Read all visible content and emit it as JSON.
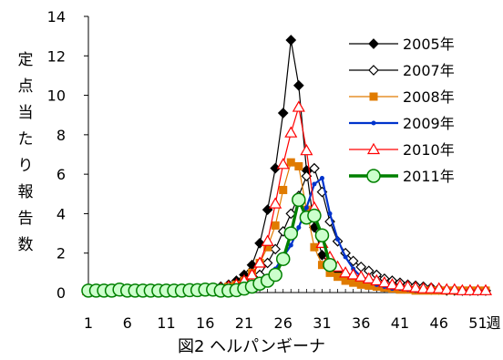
{
  "chart_data": {
    "type": "line",
    "title": "",
    "caption": "図2 ヘルパンギーナ",
    "ylabel": "定点当たり報告数",
    "xlabel": "週",
    "ylim": [
      0,
      14
    ],
    "yticks": [
      0,
      2,
      4,
      6,
      8,
      10,
      12,
      14
    ],
    "xlim": [
      1,
      52
    ],
    "xtick_labels": [
      {
        "week": 1,
        "label": "1"
      },
      {
        "week": 6,
        "label": "6"
      },
      {
        "week": 11,
        "label": "11"
      },
      {
        "week": 16,
        "label": "16"
      },
      {
        "week": 21,
        "label": "21"
      },
      {
        "week": 26,
        "label": "26"
      },
      {
        "week": 31,
        "label": "31"
      },
      {
        "week": 36,
        "label": "36"
      },
      {
        "week": 41,
        "label": "41"
      },
      {
        "week": 46,
        "label": "46"
      },
      {
        "week": 51,
        "label": "51"
      },
      {
        "week": 53,
        "label": "週"
      }
    ],
    "grid": false,
    "legend_position": "right",
    "series": [
      {
        "name": "2005年",
        "color": "#000000",
        "marker": "diamond-filled",
        "x": [
          1,
          2,
          3,
          4,
          5,
          6,
          7,
          8,
          9,
          10,
          11,
          12,
          13,
          14,
          15,
          16,
          17,
          18,
          19,
          20,
          21,
          22,
          23,
          24,
          25,
          26,
          27,
          28,
          29,
          30,
          31,
          32,
          33,
          34,
          35,
          36,
          37,
          38,
          39,
          40,
          41,
          42,
          43,
          44,
          45,
          46,
          47,
          48,
          49,
          50,
          51,
          52
        ],
        "values": [
          0.1,
          0.1,
          0.1,
          0.1,
          0.1,
          0.1,
          0.1,
          0.1,
          0.1,
          0.1,
          0.1,
          0.1,
          0.1,
          0.1,
          0.1,
          0.2,
          0.2,
          0.3,
          0.4,
          0.6,
          0.9,
          1.4,
          2.5,
          4.2,
          6.3,
          9.1,
          12.8,
          10.5,
          6.2,
          3.3,
          1.9,
          1.4,
          1.1,
          0.9,
          0.8,
          0.7,
          0.6,
          0.5,
          0.4,
          0.35,
          0.3,
          0.25,
          0.2,
          0.2,
          0.15,
          0.15,
          0.1,
          0.1,
          0.1,
          0.1,
          0.1,
          0.1
        ]
      },
      {
        "name": "2007年",
        "color": "#000000",
        "marker": "diamond-open",
        "x": [
          1,
          2,
          3,
          4,
          5,
          6,
          7,
          8,
          9,
          10,
          11,
          12,
          13,
          14,
          15,
          16,
          17,
          18,
          19,
          20,
          21,
          22,
          23,
          24,
          25,
          26,
          27,
          28,
          29,
          30,
          31,
          32,
          33,
          34,
          35,
          36,
          37,
          38,
          39,
          40,
          41,
          42,
          43,
          44,
          45,
          46,
          47,
          48,
          49,
          50,
          51,
          52
        ],
        "values": [
          0.1,
          0.1,
          0.1,
          0.1,
          0.1,
          0.1,
          0.1,
          0.1,
          0.1,
          0.1,
          0.1,
          0.1,
          0.1,
          0.1,
          0.1,
          0.1,
          0.1,
          0.2,
          0.2,
          0.3,
          0.4,
          0.6,
          0.9,
          1.5,
          2.2,
          3.1,
          4.0,
          4.9,
          5.9,
          6.3,
          5.1,
          3.6,
          2.6,
          2.0,
          1.6,
          1.3,
          1.1,
          0.9,
          0.7,
          0.6,
          0.5,
          0.4,
          0.35,
          0.3,
          0.25,
          0.2,
          0.15,
          0.15,
          0.1,
          0.1,
          0.1,
          0.1
        ]
      },
      {
        "name": "2008年",
        "color": "#E07B00",
        "marker": "square-filled",
        "x": [
          1,
          2,
          3,
          4,
          5,
          6,
          7,
          8,
          9,
          10,
          11,
          12,
          13,
          14,
          15,
          16,
          17,
          18,
          19,
          20,
          21,
          22,
          23,
          24,
          25,
          26,
          27,
          28,
          29,
          30,
          31,
          32,
          33,
          34,
          35,
          36,
          37,
          38,
          39,
          40,
          41,
          42,
          43,
          44,
          45,
          46,
          47,
          48,
          49,
          50,
          51,
          52
        ],
        "values": [
          0.1,
          0.1,
          0.1,
          0.1,
          0.1,
          0.1,
          0.1,
          0.1,
          0.1,
          0.1,
          0.1,
          0.1,
          0.1,
          0.1,
          0.1,
          0.1,
          0.2,
          0.2,
          0.3,
          0.4,
          0.6,
          1.0,
          1.5,
          2.3,
          3.4,
          5.2,
          6.6,
          6.4,
          4.2,
          2.3,
          1.4,
          1.0,
          0.8,
          0.6,
          0.5,
          0.4,
          0.35,
          0.3,
          0.25,
          0.2,
          0.15,
          0.15,
          0.1,
          0.1,
          0.1,
          0.1,
          0.1,
          0.1,
          0.1,
          0.1,
          0.1,
          0.1
        ]
      },
      {
        "name": "2009年",
        "color": "#0033CC",
        "marker": "dot",
        "x": [
          1,
          2,
          3,
          4,
          5,
          6,
          7,
          8,
          9,
          10,
          11,
          12,
          13,
          14,
          15,
          16,
          17,
          18,
          19,
          20,
          21,
          22,
          23,
          24,
          25,
          26,
          27,
          28,
          29,
          30,
          31,
          32,
          33,
          34,
          35,
          36,
          37,
          38,
          39,
          40,
          41,
          42,
          43,
          44,
          45,
          46,
          47,
          48,
          49,
          50,
          51,
          52
        ],
        "values": [
          0.1,
          0.1,
          0.1,
          0.1,
          0.1,
          0.1,
          0.1,
          0.1,
          0.1,
          0.1,
          0.1,
          0.1,
          0.1,
          0.1,
          0.1,
          0.1,
          0.1,
          0.1,
          0.1,
          0.2,
          0.2,
          0.3,
          0.4,
          0.7,
          1.2,
          1.8,
          2.4,
          3.3,
          4.3,
          5.5,
          5.8,
          4.0,
          2.7,
          1.8,
          1.2,
          0.8,
          0.6,
          0.4,
          0.3,
          0.2,
          0.2,
          0.15,
          0.1,
          0.1,
          0.1,
          0.1,
          0.1,
          0.1,
          0.1,
          0.1,
          0.1,
          0.1
        ]
      },
      {
        "name": "2010年",
        "color": "#FF0000",
        "marker": "triangle-open",
        "x": [
          1,
          2,
          3,
          4,
          5,
          6,
          7,
          8,
          9,
          10,
          11,
          12,
          13,
          14,
          15,
          16,
          17,
          18,
          19,
          20,
          21,
          22,
          23,
          24,
          25,
          26,
          27,
          28,
          29,
          30,
          31,
          32,
          33,
          34,
          35,
          36,
          37,
          38,
          39,
          40,
          41,
          42,
          43,
          44,
          45,
          46,
          47,
          48,
          49,
          50,
          51,
          52
        ],
        "values": [
          0.1,
          0.1,
          0.1,
          0.1,
          0.1,
          0.1,
          0.1,
          0.1,
          0.1,
          0.1,
          0.1,
          0.1,
          0.1,
          0.1,
          0.1,
          0.1,
          0.15,
          0.2,
          0.3,
          0.4,
          0.6,
          0.9,
          1.5,
          2.6,
          4.5,
          6.5,
          8.1,
          9.4,
          7.2,
          4.3,
          2.5,
          1.8,
          1.3,
          1.0,
          0.9,
          0.8,
          0.7,
          0.6,
          0.5,
          0.4,
          0.35,
          0.3,
          0.25,
          0.2,
          0.2,
          0.2,
          0.15,
          0.15,
          0.1,
          0.1,
          0.1,
          0.1
        ]
      },
      {
        "name": "2011年",
        "color": "#008000",
        "marker": "circle-open",
        "x": [
          1,
          2,
          3,
          4,
          5,
          6,
          7,
          8,
          9,
          10,
          11,
          12,
          13,
          14,
          15,
          16,
          17,
          18,
          19,
          20,
          21,
          22,
          23,
          24,
          25,
          26,
          27,
          28,
          29,
          30,
          31,
          32
        ],
        "values": [
          0.1,
          0.1,
          0.1,
          0.1,
          0.15,
          0.1,
          0.1,
          0.1,
          0.1,
          0.1,
          0.1,
          0.1,
          0.1,
          0.12,
          0.12,
          0.15,
          0.15,
          0.1,
          0.1,
          0.12,
          0.2,
          0.3,
          0.45,
          0.6,
          0.9,
          1.7,
          3.0,
          4.7,
          3.8,
          3.9,
          2.9,
          1.4
        ]
      }
    ]
  }
}
